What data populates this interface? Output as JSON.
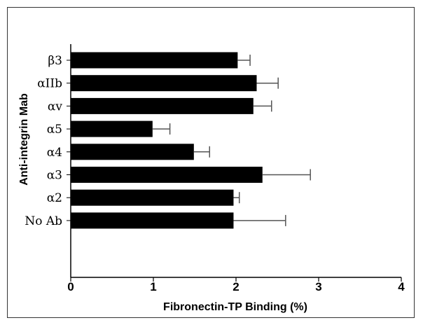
{
  "chart_data": {
    "type": "bar",
    "orientation": "horizontal",
    "title": "",
    "xlabel": "Fibronectin-TP Binding (%)",
    "ylabel": "Anti-integrin Mab",
    "categories": [
      "β3",
      "αIIb",
      "αv",
      "α5",
      "α4",
      "α3",
      "α2",
      "No Ab"
    ],
    "values": [
      2.02,
      2.25,
      2.21,
      0.99,
      1.49,
      2.32,
      1.97,
      1.97
    ],
    "errors": [
      0.15,
      0.26,
      0.22,
      0.21,
      0.19,
      0.58,
      0.07,
      0.63
    ],
    "xlim": [
      0,
      4
    ],
    "xticks": [
      "0",
      "1",
      "2",
      "3",
      "4"
    ],
    "bar_color": "#000000",
    "error_bar_color": "#555555",
    "grid": false,
    "legend": "none"
  }
}
